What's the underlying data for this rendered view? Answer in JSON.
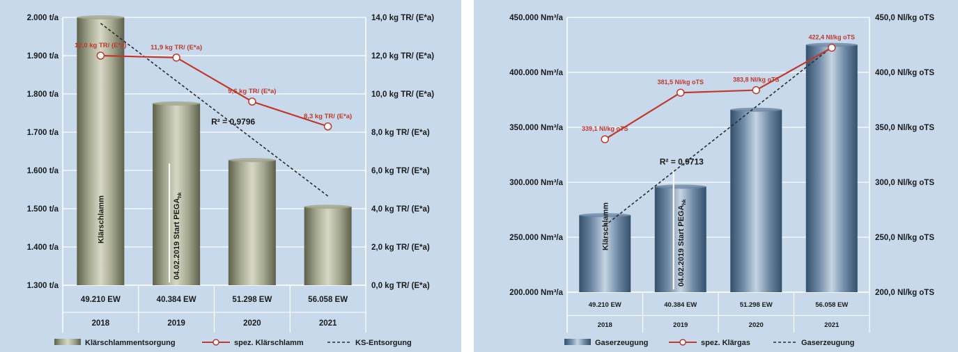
{
  "chart_data": [
    {
      "type": "bar",
      "categories": [
        "2018",
        "2019",
        "2020",
        "2021"
      ],
      "category_ew": [
        "49.210 EW",
        "40.384 EW",
        "51.298 EW",
        "56.058 EW"
      ],
      "series": [
        {
          "name": "Klärschlammentsorgung",
          "kind": "bar",
          "axis": "left",
          "values": [
            2000,
            1775,
            1627,
            1505
          ],
          "color": "#8d8f78"
        },
        {
          "name": "spez. Klärschlamm",
          "kind": "line",
          "axis": "right",
          "values": [
            12.0,
            11.9,
            9.6,
            8.3
          ],
          "color": "#c0392b",
          "data_labels": [
            "12,0 kg TR/ (E*a)",
            "11,9 kg TR/ (E*a)",
            "9,6 kg TR/ (E*a)",
            "8,3 kg TR/ (E*a)"
          ]
        },
        {
          "name": "KS-Entsorgung",
          "kind": "trend",
          "axis": "left",
          "values": [
            1975,
            1845,
            1690,
            1525
          ],
          "color": "#2b2b2b"
        }
      ],
      "y_left": {
        "min": 1300,
        "max": 2000,
        "step": 100,
        "ticks": [
          "1.300 t/a",
          "1.400 t/a",
          "1.500 t/a",
          "1.600 t/a",
          "1.700 t/a",
          "1.800 t/a",
          "1.900 t/a",
          "2.000 t/a"
        ]
      },
      "y_right": {
        "min": 0,
        "max": 14,
        "step": 2,
        "ticks": [
          "0,0 kg TR/ (E*a)",
          "2,0 kg TR/ (E*a)",
          "4,0 kg TR/ (E*a)",
          "6,0 kg TR/ (E*a)",
          "8,0 kg TR/ (E*a)",
          "10,0 kg TR/ (E*a)",
          "12,0 kg TR/ (E*a)",
          "14,0 kg TR/ (E*a)"
        ]
      },
      "r2": "R² = 0,9796",
      "bar_annotations": [
        "Klärschlamm",
        "04.02.2019 Start PEGA"
      ],
      "bar_annotation_sub": "hk",
      "grid": true,
      "legend": "bottom"
    },
    {
      "type": "bar",
      "categories": [
        "2018",
        "2019",
        "2020",
        "2021"
      ],
      "category_ew": [
        "49.210 EW",
        "40.384 EW",
        "51.298 EW",
        "56.058 EW"
      ],
      "series": [
        {
          "name": "Gaserzeugung",
          "kind": "bar",
          "axis": "left",
          "values": [
            270000,
            296000,
            366000,
            425000
          ],
          "color": "#5b7590"
        },
        {
          "name": "spez. Klärgas",
          "kind": "line",
          "axis": "right",
          "values": [
            339.1,
            381.5,
            383.8,
            422.4
          ],
          "color": "#c0392b",
          "data_labels": [
            "339,1 Nl/kg oTS",
            "381,5 Nl/kg oTS",
            "383,8 Nl/kg oTS",
            "422,4 Nl/kg oTS"
          ]
        },
        {
          "name": "Gaserzeugung",
          "kind": "trend",
          "axis": "left",
          "values": [
            260000,
            315000,
            370000,
            422000
          ],
          "color": "#2b2b2b"
        }
      ],
      "y_left": {
        "min": 200000,
        "max": 450000,
        "step": 50000,
        "ticks": [
          "200.000 Nm³/a",
          "250.000 Nm³/a",
          "300.000 Nm³/a",
          "350.000 Nm³/a",
          "400.000 Nm³/a",
          "450.000 Nm³/a"
        ]
      },
      "y_right": {
        "min": 200,
        "max": 450,
        "step": 50,
        "ticks": [
          "200,0 Nl/kg oTS",
          "250,0 Nl/kg oTS",
          "300,0 Nl/kg oTS",
          "350,0 Nl/kg oTS",
          "400,0 Nl/kg oTS",
          "450,0 Nl/kg oTS"
        ]
      },
      "r2": "R² = 0,9713",
      "bar_annotations": [
        "Klärschlamm",
        "04.02.2019 Start PEGA"
      ],
      "bar_annotation_sub": "hk",
      "grid": true,
      "legend": "bottom"
    }
  ]
}
